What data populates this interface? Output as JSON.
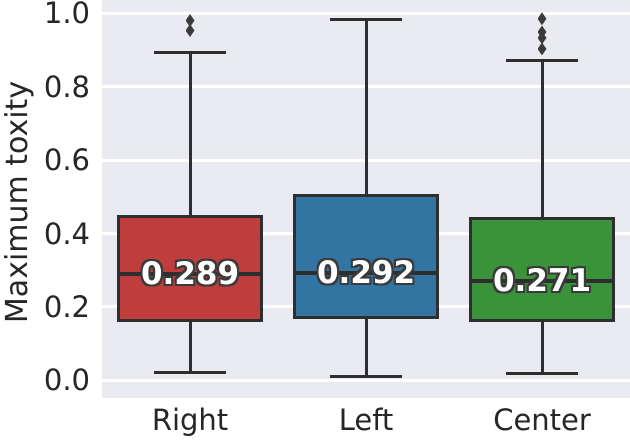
{
  "chart_data": {
    "type": "box",
    "title": "",
    "ylabel": "Maximum toxity",
    "xlabel": "",
    "categories": [
      "Right",
      "Left",
      "Center"
    ],
    "yticks": [
      0.0,
      0.2,
      0.4,
      0.6,
      0.8,
      1.0
    ],
    "ytick_labels": [
      "0.0",
      "0.2",
      "0.4",
      "0.6",
      "0.8",
      "1.0"
    ],
    "ylim": [
      -0.048,
      1.036
    ],
    "grid": "horizontal",
    "legend": "none",
    "series": [
      {
        "category": "Right",
        "color": "#c03d3d",
        "whisker_low": 0.022,
        "q1": 0.16,
        "median": 0.289,
        "q3": 0.451,
        "whisker_high": 0.894,
        "outliers": [
          0.953,
          0.98
        ],
        "median_label": "0.289"
      },
      {
        "category": "Left",
        "color": "#3274a2",
        "whisker_low": 0.01,
        "q1": 0.168,
        "median": 0.292,
        "q3": 0.508,
        "whisker_high": 0.984,
        "outliers": [],
        "median_label": "0.292"
      },
      {
        "category": "Center",
        "color": "#3a923a",
        "whisker_low": 0.019,
        "q1": 0.158,
        "median": 0.271,
        "q3": 0.446,
        "whisker_high": 0.872,
        "outliers": [
          0.903,
          0.933,
          0.949,
          0.985
        ],
        "median_label": "0.271"
      }
    ],
    "style": {
      "plot_bg": "#eaeaf2",
      "grid_color": "#ffffff",
      "line_color": "#2e2e2e",
      "outlier_color": "#3a3a3a",
      "tick_color": "#262626",
      "median_text_color": "#ffffff"
    }
  }
}
